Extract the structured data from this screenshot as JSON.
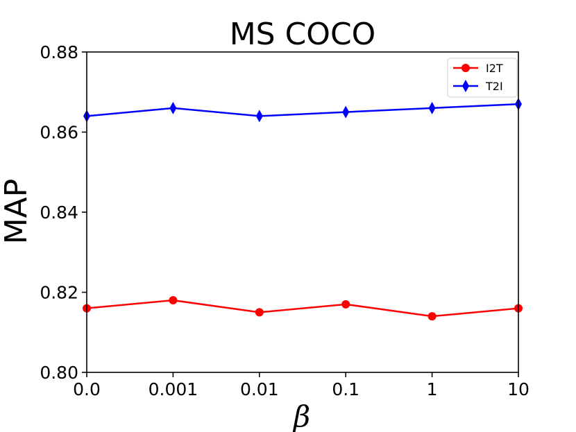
{
  "chart_data": {
    "type": "line",
    "title": "MS COCO",
    "xlabel": "β",
    "ylabel": "MAP",
    "categories": [
      "0.0",
      "0.001",
      "0.01",
      "0.1",
      "1",
      "10"
    ],
    "ylim": [
      0.8,
      0.88
    ],
    "yticks": [
      "0.80",
      "0.82",
      "0.84",
      "0.86",
      "0.88"
    ],
    "grid": false,
    "legend_position": "top-right",
    "series": [
      {
        "name": "I2T",
        "color": "#ff0000",
        "marker": "circle",
        "values": [
          0.816,
          0.818,
          0.815,
          0.817,
          0.814,
          0.816
        ]
      },
      {
        "name": "T2I",
        "color": "#0000ff",
        "marker": "diamond",
        "values": [
          0.864,
          0.866,
          0.864,
          0.865,
          0.866,
          0.867
        ]
      }
    ]
  }
}
